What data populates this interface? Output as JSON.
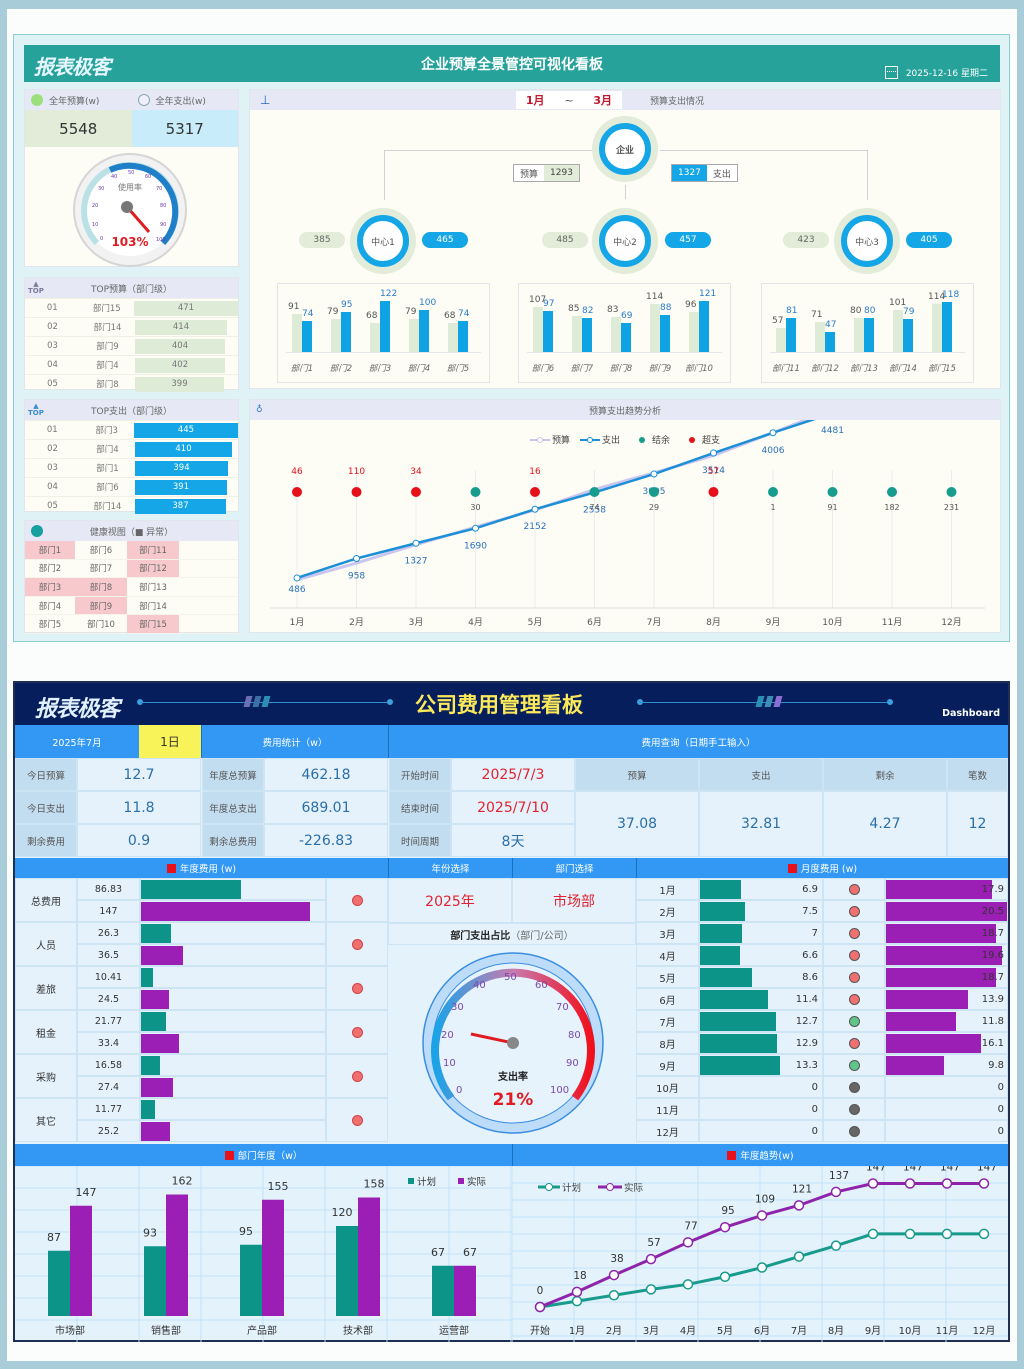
{
  "top": {
    "logo": "报表极客",
    "title": "企业预算全景管控可视化看板",
    "date": "2025-12-16 星期二",
    "kpi": {
      "budget_label": "全年预算(w)",
      "spend_label": "全年支出(w)",
      "budget_value": "5548",
      "spend_value": "5317",
      "gauge_label": "使用率",
      "gauge_value": "103%",
      "gauge_ticks": [
        "0",
        "10",
        "20",
        "30",
        "40",
        "50",
        "60",
        "70",
        "80",
        "90",
        "100"
      ]
    },
    "top_budget": {
      "title": "TOP预算（部门级）",
      "badge": "TOP",
      "rows": [
        {
          "rank": "01",
          "dept": "部门15",
          "value": "471"
        },
        {
          "rank": "02",
          "dept": "部门14",
          "value": "414"
        },
        {
          "rank": "03",
          "dept": "部门9",
          "value": "404"
        },
        {
          "rank": "04",
          "dept": "部门4",
          "value": "402"
        },
        {
          "rank": "05",
          "dept": "部门8",
          "value": "399"
        }
      ]
    },
    "top_spend": {
      "title": "TOP支出（部门级）",
      "badge": "TOP",
      "rows": [
        {
          "rank": "01",
          "dept": "部门3",
          "value": "445"
        },
        {
          "rank": "02",
          "dept": "部门4",
          "value": "410"
        },
        {
          "rank": "03",
          "dept": "部门1",
          "value": "394"
        },
        {
          "rank": "04",
          "dept": "部门6",
          "value": "391"
        },
        {
          "rank": "05",
          "dept": "部门14",
          "value": "387"
        }
      ]
    },
    "health": {
      "title": "健康视图（■ 异常）",
      "cells": [
        {
          "name": "部门1",
          "bad": true
        },
        {
          "name": "部门6",
          "bad": false
        },
        {
          "name": "部门11",
          "bad": true
        },
        {
          "name": "部门2",
          "bad": false
        },
        {
          "name": "部门7",
          "bad": false
        },
        {
          "name": "部门12",
          "bad": true
        },
        {
          "name": "部门3",
          "bad": true
        },
        {
          "name": "部门8",
          "bad": true
        },
        {
          "name": "部门13",
          "bad": false
        },
        {
          "name": "部门4",
          "bad": false
        },
        {
          "name": "部门9",
          "bad": true
        },
        {
          "name": "部门14",
          "bad": false
        },
        {
          "name": "部门5",
          "bad": false
        },
        {
          "name": "部门10",
          "bad": false
        },
        {
          "name": "部门15",
          "bad": true
        }
      ]
    },
    "org": {
      "range_from": "1月",
      "range_sep": "~",
      "range_to": "3月",
      "title": "预算支出情况",
      "root": {
        "name": "企业",
        "budget_label": "预算",
        "budget": "1293",
        "spend": "1327",
        "spend_label": "支出"
      },
      "centers": [
        {
          "name": "中心1",
          "budget": "385",
          "spend": "465"
        },
        {
          "name": "中心2",
          "budget": "485",
          "spend": "457"
        },
        {
          "name": "中心3",
          "budget": "423",
          "spend": "405"
        }
      ]
    },
    "trend_title": "预算支出趋势分析"
  },
  "bottom": {
    "logo": "报表极客",
    "title": "公司费用管理看板",
    "dashboard_label": "Dashboard",
    "month": "2025年7月",
    "day": "1日",
    "today": [
      {
        "label": "今日预算",
        "value": "12.7"
      },
      {
        "label": "今日支出",
        "value": "11.8"
      },
      {
        "label": "剩余费用",
        "value": "0.9"
      }
    ],
    "stats_title": "费用统计（w）",
    "stats": [
      {
        "label": "年度总预算",
        "value": "462.18"
      },
      {
        "label": "年度总支出",
        "value": "689.01"
      },
      {
        "label": "剩余总费用",
        "value": "-226.83"
      }
    ],
    "query_title": "费用查询（日期手工输入）",
    "query_fields": [
      {
        "label": "开始时间",
        "value": "2025/7/3"
      },
      {
        "label": "结束时间",
        "value": "2025/7/10"
      },
      {
        "label": "时间周期",
        "value": "8天"
      }
    ],
    "query_headers": [
      "预算",
      "支出",
      "剩余",
      "笔数"
    ],
    "query_values": [
      "37.08",
      "32.81",
      "4.27",
      "12"
    ],
    "annual_title": "年度费用 (w)",
    "year_select_label": "年份选择",
    "dept_select_label": "部门选择",
    "year_value": "2025年",
    "dept_value": "市场部",
    "ratio_title": "部门支出占比",
    "ratio_sub": "（部门/公司）",
    "gauge_label": "支出率",
    "gauge_value": "21%",
    "monthly_title": "月度费用 (w)",
    "dept_annual_title": "部门年度（w）",
    "trend_title": "年度趋势(w)",
    "legend_plan": "计划",
    "legend_actual": "实际"
  },
  "chart_data": [
    {
      "type": "bar",
      "title": "中心1 部门预算/支出",
      "categories": [
        "部门1",
        "部门2",
        "部门3",
        "部门4",
        "部门5"
      ],
      "series": [
        {
          "name": "预算",
          "values": [
            91,
            79,
            68,
            79,
            68
          ]
        },
        {
          "name": "支出",
          "values": [
            74,
            95,
            122,
            100,
            74
          ]
        }
      ]
    },
    {
      "type": "bar",
      "title": "中心2 部门预算/支出",
      "categories": [
        "部门6",
        "部门7",
        "部门8",
        "部门9",
        "部门10"
      ],
      "series": [
        {
          "name": "预算",
          "values": [
            107,
            85,
            83,
            114,
            96
          ]
        },
        {
          "name": "支出",
          "values": [
            97,
            82,
            69,
            88,
            121
          ]
        }
      ]
    },
    {
      "type": "bar",
      "title": "中心3 部门预算/支出",
      "categories": [
        "部门11",
        "部门12",
        "部门13",
        "部门14",
        "部门15"
      ],
      "series": [
        {
          "name": "预算",
          "values": [
            57,
            71,
            80,
            101,
            114
          ]
        },
        {
          "name": "支出",
          "values": [
            81,
            47,
            80,
            79,
            118
          ]
        }
      ]
    },
    {
      "type": "line",
      "title": "预算支出趋势分析",
      "categories": [
        "1月",
        "2月",
        "3月",
        "4月",
        "5月",
        "6月",
        "7月",
        "8月",
        "9月",
        "10月",
        "11月",
        "12月"
      ],
      "series": [
        {
          "name": "预算",
          "values": [
            440,
            848,
            1293,
            1720,
            2136,
            2632,
            3034,
            3457,
            4007,
            4572,
            5084,
            5548
          ]
        },
        {
          "name": "支出",
          "values": [
            486,
            958,
            1327,
            1690,
            2152,
            2558,
            3005,
            3514,
            4006,
            4481,
            4902,
            5317
          ]
        },
        {
          "name": "结余",
          "values": [
            null,
            null,
            null,
            30,
            null,
            74,
            29,
            null,
            1,
            91,
            182,
            231
          ]
        },
        {
          "name": "超支",
          "values": [
            46,
            110,
            34,
            null,
            16,
            null,
            null,
            57,
            null,
            null,
            null,
            null
          ]
        }
      ],
      "legend": [
        "预算",
        "支出",
        "结余",
        "超支"
      ]
    },
    {
      "type": "bar",
      "title": "年度费用 (w)",
      "categories": [
        "总费用",
        "人员",
        "差旅",
        "租金",
        "采购",
        "其它"
      ],
      "series": [
        {
          "name": "计划",
          "values": [
            86.83,
            26.3,
            10.41,
            21.77,
            16.58,
            11.77
          ]
        },
        {
          "name": "实际",
          "values": [
            147,
            36.5,
            24.5,
            33.4,
            27.4,
            25.2
          ]
        }
      ],
      "status": [
        "red",
        "red",
        "red",
        "red",
        "red",
        "red"
      ]
    },
    {
      "type": "bar",
      "title": "月度费用 (w)",
      "categories": [
        "1月",
        "2月",
        "3月",
        "4月",
        "5月",
        "6月",
        "7月",
        "8月",
        "9月",
        "10月",
        "11月",
        "12月"
      ],
      "series": [
        {
          "name": "计划",
          "values": [
            6.9,
            7.5,
            7.0,
            6.6,
            8.6,
            11.4,
            12.7,
            12.9,
            13.3,
            0.0,
            0.0,
            0.0
          ]
        },
        {
          "name": "实际",
          "values": [
            17.9,
            20.5,
            18.7,
            19.6,
            18.7,
            13.9,
            11.8,
            16.1,
            9.8,
            0.0,
            0.0,
            0.0
          ]
        }
      ],
      "status": [
        "red",
        "red",
        "red",
        "red",
        "red",
        "red",
        "green",
        "red",
        "green",
        "gray",
        "gray",
        "gray"
      ]
    },
    {
      "type": "bar",
      "title": "部门年度（w）",
      "categories": [
        "市场部",
        "销售部",
        "产品部",
        "技术部",
        "运营部"
      ],
      "series": [
        {
          "name": "计划",
          "values": [
            87,
            93,
            95,
            120,
            67
          ]
        },
        {
          "name": "实际",
          "values": [
            147,
            162,
            155,
            158,
            67
          ]
        }
      ],
      "legend": [
        "计划",
        "实际"
      ]
    },
    {
      "type": "line",
      "title": "年度趋势(w)",
      "categories": [
        "开始",
        "1月",
        "2月",
        "3月",
        "4月",
        "5月",
        "6月",
        "7月",
        "8月",
        "9月",
        "10月",
        "11月",
        "12月"
      ],
      "series": [
        {
          "name": "计划",
          "values": [
            0,
            7,
            14,
            21,
            27,
            36,
            47,
            60,
            73,
            87,
            87,
            87,
            87
          ]
        },
        {
          "name": "实际",
          "values": [
            0,
            18,
            38,
            57,
            77,
            95,
            109,
            121,
            137,
            147,
            147,
            147,
            147
          ]
        }
      ],
      "legend": [
        "计划",
        "实际"
      ]
    },
    {
      "type": "gauge",
      "title": "使用率",
      "value": 103,
      "range": [
        0,
        100
      ]
    },
    {
      "type": "gauge",
      "title": "支出率",
      "value": 21,
      "range": [
        0,
        100
      ]
    }
  ]
}
